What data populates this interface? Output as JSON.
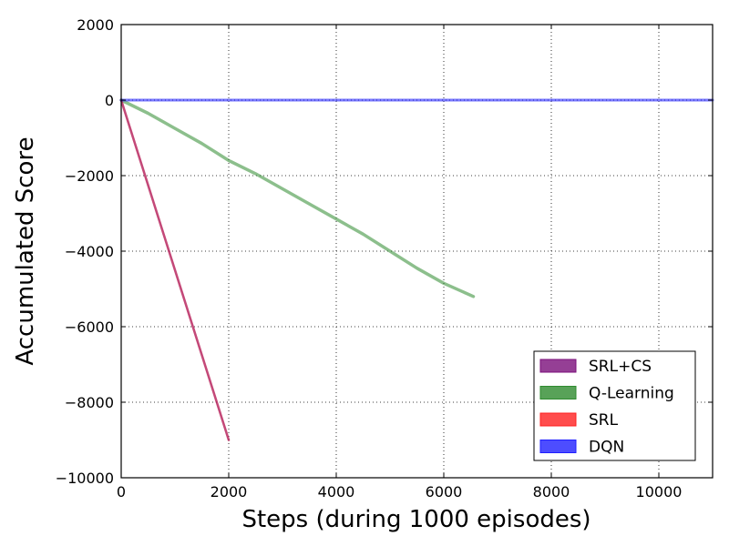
{
  "chart_data": {
    "type": "line",
    "title": "",
    "xlabel": "Steps (during 1000 episodes)",
    "ylabel": "Accumulated Score",
    "xlim": [
      0,
      11000
    ],
    "ylim": [
      -10000,
      2000
    ],
    "x_ticks": [
      0,
      2000,
      4000,
      6000,
      8000,
      10000
    ],
    "x_tick_labels": [
      "0",
      "2000",
      "4000",
      "6000",
      "8000",
      "10000"
    ],
    "y_ticks": [
      2000,
      0,
      -2000,
      -4000,
      -6000,
      -8000,
      -10000
    ],
    "y_tick_labels": [
      "2000",
      "0",
      "−2000",
      "−4000",
      "−6000",
      "−8000",
      "−10000"
    ],
    "grid": true,
    "legend_position": "lower-right",
    "series": [
      {
        "name": "SRL+CS",
        "color": "#7b0f7b",
        "x": [
          0,
          2000
        ],
        "y": [
          0,
          -9000
        ]
      },
      {
        "name": "Q-Learning",
        "color": "#2e8b2e",
        "x": [
          0,
          500,
          1000,
          1500,
          2000,
          2500,
          3000,
          3500,
          4000,
          4500,
          5000,
          5500,
          6000,
          6550
        ],
        "y": [
          0,
          -350,
          -750,
          -1150,
          -1600,
          -1950,
          -2350,
          -2750,
          -3150,
          -3550,
          -4000,
          -4450,
          -4850,
          -5200
        ]
      },
      {
        "name": "SRL",
        "color": "#ff2020",
        "x": [
          0,
          2000
        ],
        "y": [
          0,
          -9000
        ]
      },
      {
        "name": "DQN",
        "color": "#2020ff",
        "x": [
          0,
          11000
        ],
        "y": [
          0,
          0
        ]
      }
    ]
  }
}
